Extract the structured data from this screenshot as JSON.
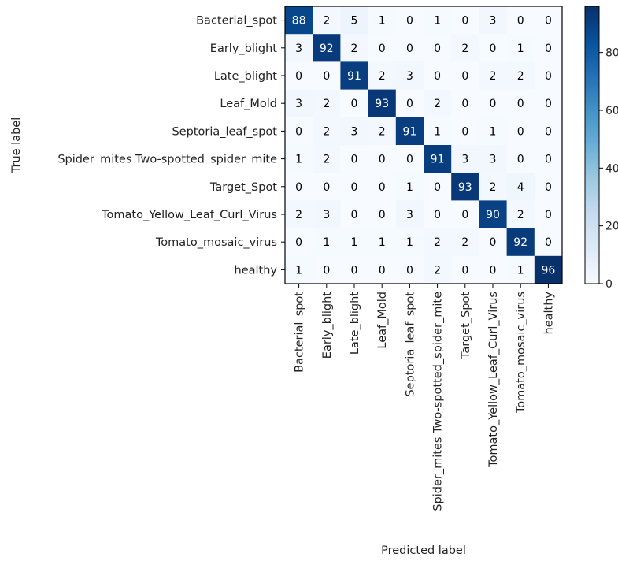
{
  "chart_data": {
    "type": "heatmap",
    "title": "",
    "xlabel": "Predicted label",
    "ylabel": "True label",
    "x_categories": [
      "Bacterial_spot",
      "Early_blight",
      "Late_blight",
      "Leaf_Mold",
      "Septoria_leaf_spot",
      "Spider_mites Two-spotted_spider_mite",
      "Target_Spot",
      "Tomato_Yellow_Leaf_Curl_Virus",
      "Tomato_mosaic_virus",
      "healthy"
    ],
    "y_categories": [
      "Bacterial_spot",
      "Early_blight",
      "Late_blight",
      "Leaf_Mold",
      "Septoria_leaf_spot",
      "Spider_mites Two-spotted_spider_mite",
      "Target_Spot",
      "Tomato_Yellow_Leaf_Curl_Virus",
      "Tomato_mosaic_virus",
      "healthy"
    ],
    "values": [
      [
        88,
        2,
        5,
        1,
        0,
        1,
        0,
        3,
        0,
        0
      ],
      [
        3,
        92,
        2,
        0,
        0,
        0,
        2,
        0,
        1,
        0
      ],
      [
        0,
        0,
        91,
        2,
        3,
        0,
        0,
        2,
        2,
        0
      ],
      [
        3,
        2,
        0,
        93,
        0,
        2,
        0,
        0,
        0,
        0
      ],
      [
        0,
        2,
        3,
        2,
        91,
        1,
        0,
        1,
        0,
        0
      ],
      [
        1,
        2,
        0,
        0,
        0,
        91,
        3,
        3,
        0,
        0
      ],
      [
        0,
        0,
        0,
        0,
        1,
        0,
        93,
        2,
        4,
        0
      ],
      [
        2,
        3,
        0,
        0,
        3,
        0,
        0,
        90,
        2,
        0
      ],
      [
        0,
        1,
        1,
        1,
        1,
        2,
        2,
        0,
        92,
        0
      ],
      [
        1,
        0,
        0,
        0,
        0,
        2,
        0,
        0,
        1,
        96
      ]
    ],
    "colormap": "Blues",
    "value_range": [
      0,
      96
    ],
    "colorbar": {
      "ticks": [
        0,
        20,
        40,
        60,
        80
      ],
      "tick_labels": [
        "0",
        "20",
        "40",
        "60",
        "80"
      ]
    }
  }
}
